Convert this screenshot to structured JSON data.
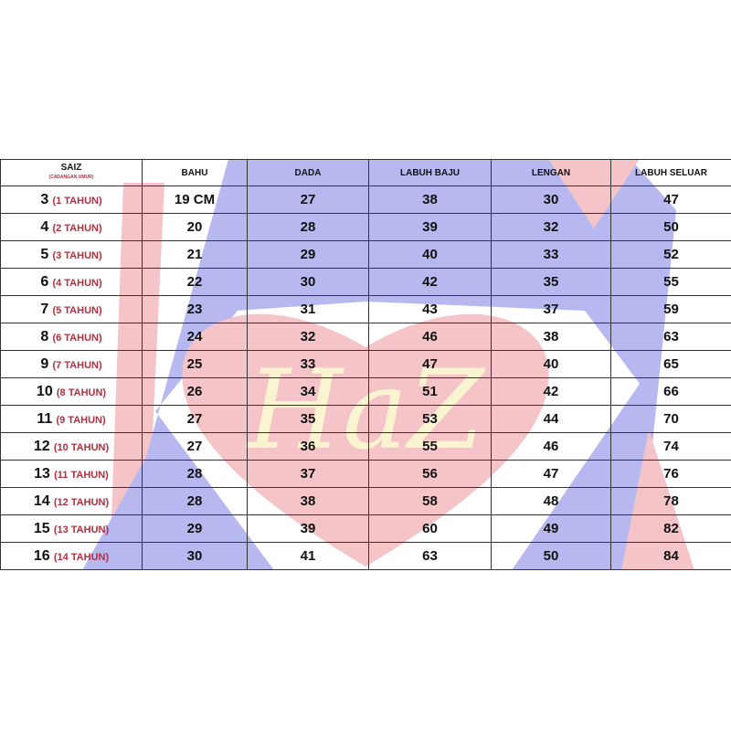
{
  "headers": {
    "saiz": "SAIZ",
    "saiz_sub": "(CADANGAN UMUR)",
    "bahu": "BAHU",
    "dada": "DADA",
    "labuh_baju": "LABUH BAJU",
    "lengan": "LENGAN",
    "labuh_seluar": "LABUH  SELUAR"
  },
  "watermark": {
    "text": "HaZ",
    "colors": {
      "blue": "#b8b8f0",
      "red": "#f4c4c8",
      "cream": "#fbf4d0"
    }
  },
  "rows": [
    {
      "size": "3",
      "age": "(1 TAHUN)",
      "bahu": "19 CM",
      "dada": "27",
      "labuh_baju": "38",
      "lengan": "30",
      "labuh_seluar": "47"
    },
    {
      "size": "4",
      "age": "(2 TAHUN)",
      "bahu": "20",
      "dada": "28",
      "labuh_baju": "39",
      "lengan": "32",
      "labuh_seluar": "50"
    },
    {
      "size": "5",
      "age": "(3 TAHUN)",
      "bahu": "21",
      "dada": "29",
      "labuh_baju": "40",
      "lengan": "33",
      "labuh_seluar": "52"
    },
    {
      "size": "6",
      "age": "(4 TAHUN)",
      "bahu": "22",
      "dada": "30",
      "labuh_baju": "42",
      "lengan": "35",
      "labuh_seluar": "55"
    },
    {
      "size": "7",
      "age": "(5 TAHUN)",
      "bahu": "23",
      "dada": "31",
      "labuh_baju": "43",
      "lengan": "37",
      "labuh_seluar": "59"
    },
    {
      "size": "8",
      "age": "(6 TAHUN)",
      "bahu": "24",
      "dada": "32",
      "labuh_baju": "46",
      "lengan": "38",
      "labuh_seluar": "63"
    },
    {
      "size": "9",
      "age": "(7 TAHUN)",
      "bahu": "25",
      "dada": "33",
      "labuh_baju": "47",
      "lengan": "40",
      "labuh_seluar": "65"
    },
    {
      "size": "10",
      "age": "(8 TAHUN)",
      "bahu": "26",
      "dada": "34",
      "labuh_baju": "51",
      "lengan": "42",
      "labuh_seluar": "66"
    },
    {
      "size": "11",
      "age": "(9 TAHUN)",
      "bahu": "27",
      "dada": "35",
      "labuh_baju": "53",
      "lengan": "44",
      "labuh_seluar": "70"
    },
    {
      "size": "12",
      "age": "(10 TAHUN)",
      "bahu": "27",
      "dada": "36",
      "labuh_baju": "55",
      "lengan": "46",
      "labuh_seluar": "74"
    },
    {
      "size": "13",
      "age": "(11 TAHUN)",
      "bahu": "28",
      "dada": "37",
      "labuh_baju": "56",
      "lengan": "47",
      "labuh_seluar": "76"
    },
    {
      "size": "14",
      "age": "(12 TAHUN)",
      "bahu": "28",
      "dada": "38",
      "labuh_baju": "58",
      "lengan": "48",
      "labuh_seluar": "78"
    },
    {
      "size": "15",
      "age": "(13 TAHUN)",
      "bahu": "29",
      "dada": "39",
      "labuh_baju": "60",
      "lengan": "49",
      "labuh_seluar": "82"
    },
    {
      "size": "16",
      "age": "(14 TAHUN)",
      "bahu": "30",
      "dada": "41",
      "labuh_baju": "63",
      "lengan": "50",
      "labuh_seluar": "84"
    }
  ]
}
